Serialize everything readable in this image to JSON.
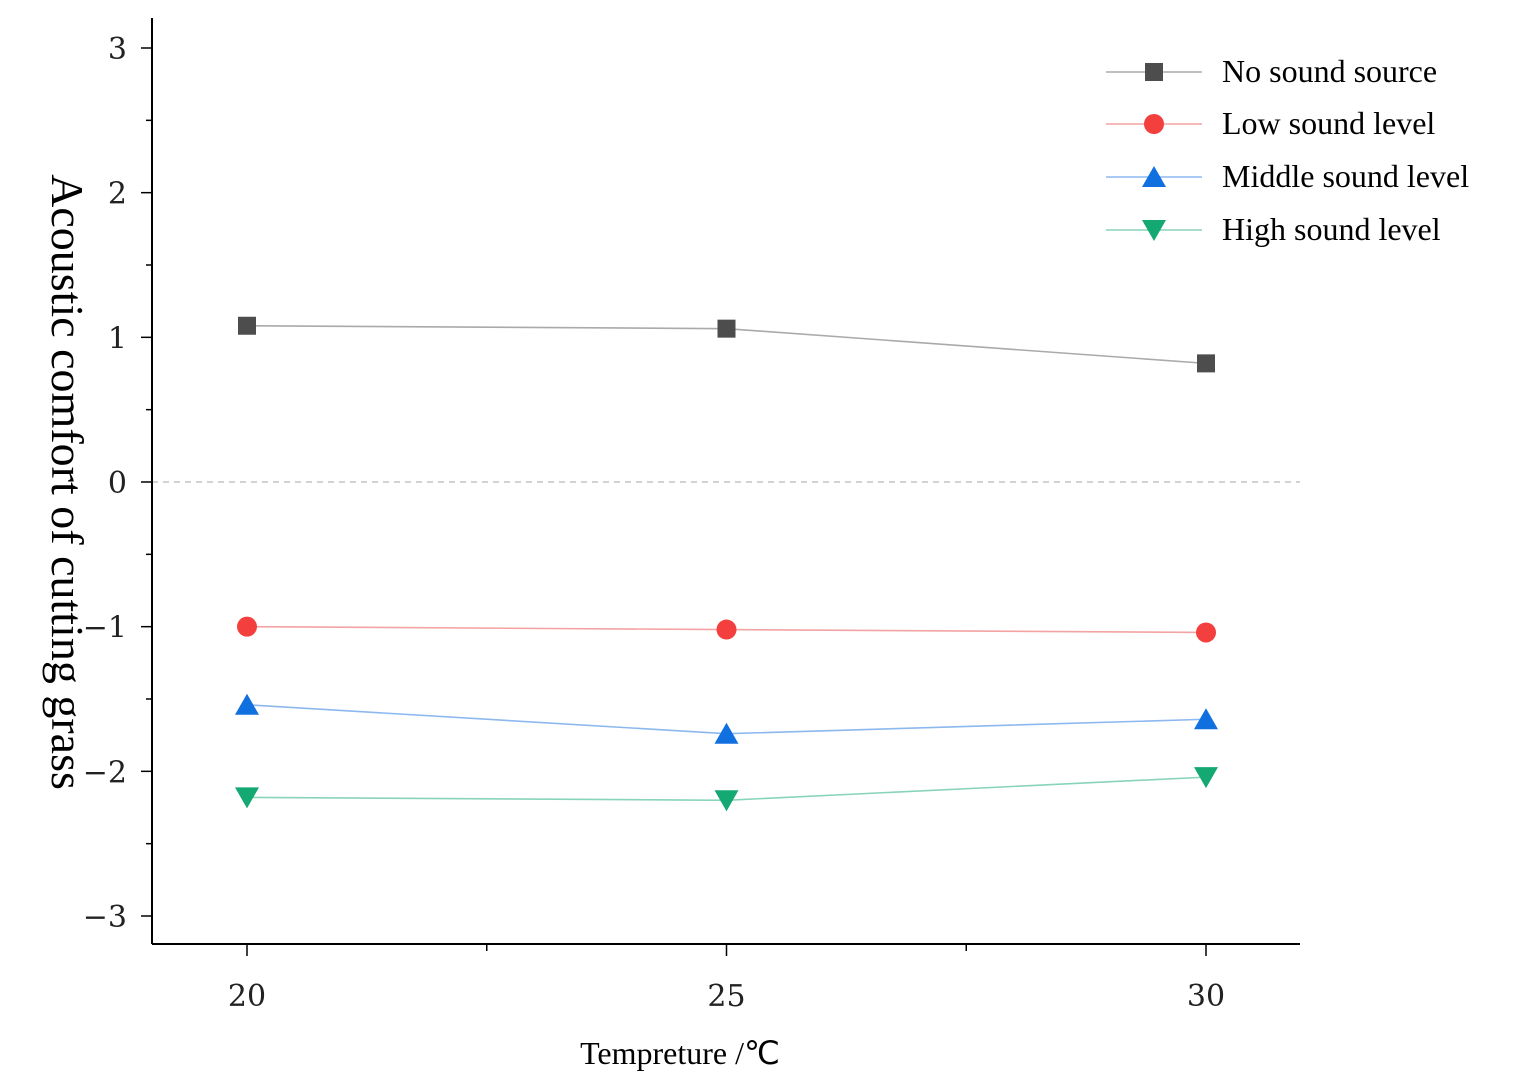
{
  "chart_data": {
    "type": "line",
    "title": "",
    "xlabel": "Tempreture /℃",
    "ylabel": "Acoustic comfort of cutting grass",
    "x": [
      20,
      25,
      30
    ],
    "xlim": [
      19,
      31
    ],
    "x_ticks": [
      "20",
      "25",
      "30"
    ],
    "ylim": [
      -3.2,
      3.2
    ],
    "y_ticks": [
      3,
      2,
      1,
      0,
      -1,
      -2,
      -3
    ],
    "y_tick_labels": [
      "3",
      "2",
      "1",
      "0",
      "−1",
      "−2",
      "−3"
    ],
    "zero_reference_line": true,
    "grid": false,
    "legend_position": "top-right",
    "series": [
      {
        "name": "No sound source",
        "values": [
          1.08,
          1.06,
          0.82
        ],
        "color": "#4d4d4d",
        "line_color": "#aaaaaa",
        "marker": "square"
      },
      {
        "name": "Low sound level",
        "values": [
          -1.0,
          -1.02,
          -1.04
        ],
        "color": "#f43f3f",
        "line_color": "#f3a3a3",
        "marker": "circle"
      },
      {
        "name": "Middle sound level",
        "values": [
          -1.54,
          -1.74,
          -1.64
        ],
        "color": "#1170e0",
        "line_color": "#8cb8f0",
        "marker": "triangle-up"
      },
      {
        "name": "High sound level",
        "values": [
          -2.18,
          -2.2,
          -2.04
        ],
        "color": "#14a873",
        "line_color": "#88d4b8",
        "marker": "triangle-down"
      }
    ]
  }
}
